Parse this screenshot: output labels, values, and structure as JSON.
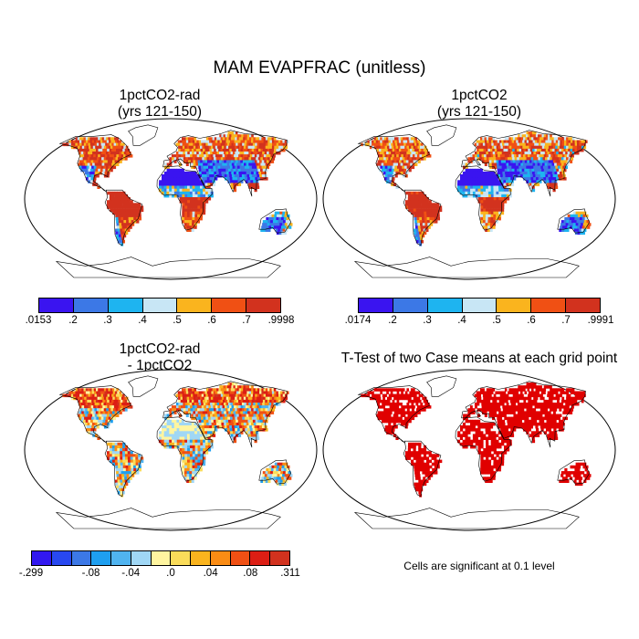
{
  "title": "MAM EVAPFRAC (unitless)",
  "panels": [
    {
      "title_line1": "1pctCO2-rad",
      "title_line2": "(yrs 121-150)"
    },
    {
      "title_line1": "1pctCO2",
      "title_line2": "(yrs 121-150)"
    },
    {
      "title_line1": "1pctCO2-rad",
      "title_line2": "- 1pctCO2"
    },
    {
      "title_line1": "T-Test of two Case means at each grid point",
      "title_line2": ""
    }
  ],
  "colorbars": [
    {
      "colors": [
        "#3a14f0",
        "#3c78e6",
        "#1eb4f0",
        "#c8e6f5",
        "#fab41e",
        "#f05014",
        "#d2321e"
      ],
      "labels": [
        ".0153",
        ".2",
        ".3",
        ".4",
        ".5",
        ".6",
        ".7",
        ".9998"
      ]
    },
    {
      "colors": [
        "#3a14f0",
        "#3c78e6",
        "#1eb4f0",
        "#c8e6f5",
        "#fab41e",
        "#f05014",
        "#d2321e"
      ],
      "labels": [
        ".0174",
        ".2",
        ".3",
        ".4",
        ".5",
        ".6",
        ".7",
        ".9991"
      ]
    },
    {
      "colors": [
        "#3218f0",
        "#2848f0",
        "#3c78e6",
        "#1e9ff0",
        "#50b4f0",
        "#a0d7f5",
        "#fff5a0",
        "#fadc5a",
        "#fab41e",
        "#fa8c14",
        "#f05014",
        "#dc1e14",
        "#d2321e"
      ],
      "labels": [
        "-.299",
        "-.08",
        "-.04",
        ".0",
        ".04",
        ".08",
        ".311"
      ]
    }
  ],
  "footnote": "Cells are significant at 0.1 level"
}
